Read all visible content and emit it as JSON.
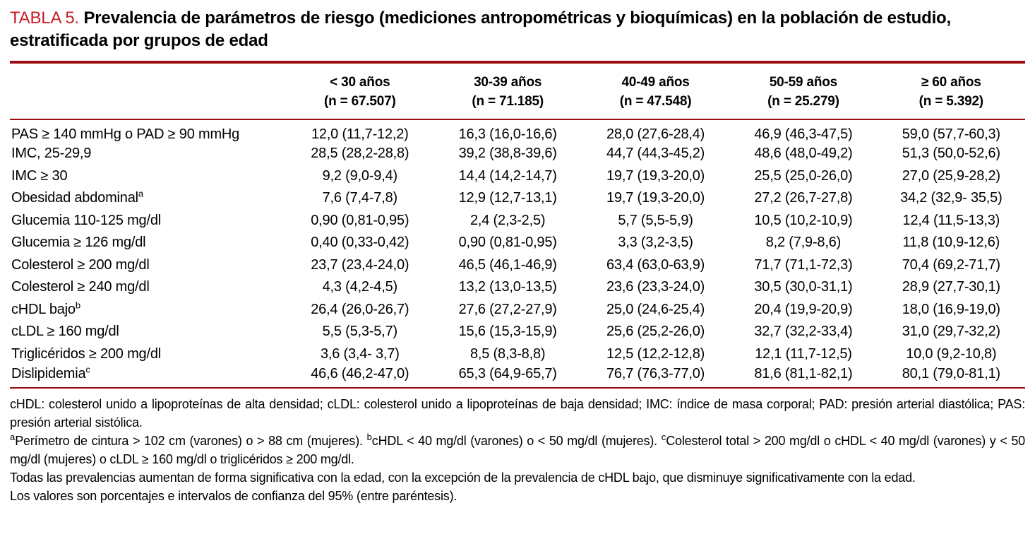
{
  "title": {
    "tag": "TABLA 5.",
    "text": "Prevalencia de parámetros de riesgo (mediciones antropométricas y bioquímicas) en la población de estudio, estratificada por grupos de edad"
  },
  "colors": {
    "rule_red": "#9b0d12",
    "tag_red": "#c41e25",
    "text": "#000000",
    "background": "#ffffff"
  },
  "table": {
    "columns": [
      {
        "label": "< 30 años",
        "n": "(n = 67.507)"
      },
      {
        "label": "30-39 años",
        "n": "(n = 71.185)"
      },
      {
        "label": "40-49 años",
        "n": "(n = 47.548)"
      },
      {
        "label": "50-59 años",
        "n": "(n = 25.279)"
      },
      {
        "label": "≥ 60 años",
        "n": "(n = 5.392)"
      }
    ],
    "rows": [
      {
        "label": "PAS ≥ 140 mmHg o PAD ≥ 90 mmHg",
        "sup": "",
        "values": [
          "12,0 (11,7-12,2)",
          "16,3 (16,0-16,6)",
          "28,0 (27,6-28,4)",
          "46,9 (46,3-47,5)",
          "59,0 (57,7-60,3)"
        ]
      },
      {
        "label": "IMC, 25-29,9",
        "sup": "",
        "values": [
          "28,5 (28,2-28,8)",
          "39,2 (38,8-39,6)",
          "44,7 (44,3-45,2)",
          "48,6 (48,0-49,2)",
          "51,3 (50,0-52,6)"
        ]
      },
      {
        "label": "IMC ≥ 30",
        "sup": "",
        "values": [
          "9,2 (9,0-9,4)",
          "14,4 (14,2-14,7)",
          "19,7 (19,3-20,0)",
          "25,5 (25,0-26,0)",
          "27,0 (25,9-28,2)"
        ]
      },
      {
        "label": "Obesidad abdominal",
        "sup": "a",
        "values": [
          "7,6 (7,4-7,8)",
          "12,9 (12,7-13,1)",
          "19,7 (19,3-20,0)",
          "27,2 (26,7-27,8)",
          "34,2 (32,9- 35,5)"
        ]
      },
      {
        "label": "Glucemia 110-125 mg/dl",
        "sup": "",
        "values": [
          "0,90 (0,81-0,95)",
          "2,4 (2,3-2,5)",
          "5,7 (5,5-5,9)",
          "10,5 (10,2-10,9)",
          "12,4 (11,5-13,3)"
        ]
      },
      {
        "label": "Glucemia ≥ 126 mg/dl",
        "sup": "",
        "values": [
          "0,40 (0,33-0,42)",
          "0,90 (0,81-0,95)",
          "3,3 (3,2-3,5)",
          "8,2 (7,9-8,6)",
          "11,8 (10,9-12,6)"
        ]
      },
      {
        "label": "Colesterol ≥ 200 mg/dl",
        "sup": "",
        "values": [
          "23,7 (23,4-24,0)",
          "46,5 (46,1-46,9)",
          "63,4 (63,0-63,9)",
          "71,7 (71,1-72,3)",
          "70,4 (69,2-71,7)"
        ]
      },
      {
        "label": "Colesterol ≥ 240 mg/dl",
        "sup": "",
        "values": [
          "4,3 (4,2-4,5)",
          "13,2 (13,0-13,5)",
          "23,6 (23,3-24,0)",
          "30,5 (30,0-31,1)",
          "28,9 (27,7-30,1)"
        ]
      },
      {
        "label": "cHDL bajo",
        "sup": "b",
        "values": [
          "26,4 (26,0-26,7)",
          "27,6 (27,2-27,9)",
          "25,0 (24,6-25,4)",
          "20,4 (19,9-20,9)",
          "18,0 (16,9-19,0)"
        ]
      },
      {
        "label": "cLDL ≥ 160 mg/dl",
        "sup": "",
        "values": [
          "5,5 (5,3-5,7)",
          "15,6 (15,3-15,9)",
          "25,6 (25,2-26,0)",
          "32,7 (32,2-33,4)",
          "31,0 (29,7-32,2)"
        ]
      },
      {
        "label": "Triglicéridos ≥ 200 mg/dl",
        "sup": "",
        "values": [
          "3,6 (3,4- 3,7)",
          "8,5 (8,3-8,8)",
          "12,5 (12,2-12,8)",
          "12,1 (11,7-12,5)",
          "10,0 (9,2-10,8)"
        ]
      },
      {
        "label": "Dislipidemia",
        "sup": "c",
        "values": [
          "46,6 (46,2-47,0)",
          "65,3 (64,9-65,7)",
          "76,7 (76,3-77,0)",
          "81,6 (81,1-82,1)",
          "80,1 (79,0-81,1)"
        ]
      }
    ]
  },
  "footnotes": {
    "abbreviations": "cHDL: colesterol unido a lipoproteínas de alta densidad; cLDL: colesterol unido a lipoproteínas de baja densidad; IMC: índice de masa corporal; PAD: presión arterial diastólica; PAS: presión arterial sistólica.",
    "definitions": [
      {
        "sup": "a",
        "text": "Perímetro de cintura > 102 cm (varones) o > 88 cm (mujeres). "
      },
      {
        "sup": "b",
        "text": "cHDL < 40 mg/dl (varones) o < 50 mg/dl (mujeres). "
      },
      {
        "sup": "c",
        "text": "Colesterol total > 200 mg/dl o cHDL < 40 mg/dl (varones) y < 50 mg/dl (mujeres) o cLDL ≥ 160 mg/dl o triglicéridos ≥ 200 mg/dl."
      }
    ],
    "note_significance": "Todas las prevalencias aumentan de forma significativa con la edad, con la excepción de la prevalencia de cHDL bajo, que disminuye significativamente con la edad.",
    "note_values": "Los valores son porcentajes e intervalos de confianza del 95% (entre paréntesis)."
  }
}
